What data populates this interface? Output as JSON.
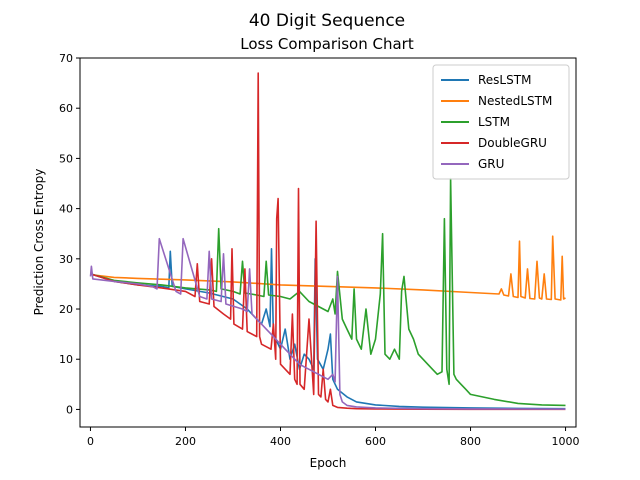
{
  "chart_data": {
    "type": "line",
    "title": "40 Digit Sequence",
    "subtitle": "Loss Comparison Chart",
    "xlabel": "Epoch",
    "ylabel": "Prediction Cross Entropy",
    "xlim": [
      -22,
      1022
    ],
    "ylim": [
      -3.5,
      70
    ],
    "xticks": [
      0,
      200,
      400,
      600,
      800,
      1000
    ],
    "yticks": [
      0,
      10,
      20,
      30,
      40,
      50,
      60,
      70
    ],
    "grid": false,
    "legend": "top-right",
    "series": [
      {
        "name": "ResLSTM",
        "color": "#1f77b4",
        "x": [
          0,
          50,
          100,
          150,
          165,
          168,
          172,
          200,
          250,
          300,
          330,
          350,
          360,
          370,
          378,
          381,
          385,
          400,
          410,
          420,
          430,
          440,
          450,
          460,
          470,
          473,
          478,
          490,
          500,
          505,
          510,
          520,
          540,
          560,
          600,
          650,
          700,
          800,
          900,
          1000
        ],
        "y": [
          27,
          25.5,
          24.8,
          24.5,
          24.2,
          31.5,
          24.5,
          24.0,
          23.2,
          22,
          20,
          18,
          17,
          20,
          16.5,
          32,
          15,
          12,
          16,
          10,
          13,
          8,
          11,
          10,
          8,
          30,
          10,
          8,
          12,
          15,
          6,
          4,
          2.5,
          1.5,
          0.9,
          0.6,
          0.45,
          0.3,
          0.2,
          0.15
        ]
      },
      {
        "name": "NestedLSTM",
        "color": "#ff7f0e",
        "x": [
          0,
          5,
          50,
          100,
          200,
          300,
          400,
          500,
          600,
          700,
          800,
          860,
          865,
          870,
          880,
          885,
          890,
          900,
          903,
          906,
          915,
          920,
          925,
          935,
          940,
          945,
          950,
          955,
          960,
          970,
          973,
          978,
          990,
          993,
          996,
          1000
        ],
        "y": [
          27,
          26.8,
          26.3,
          26.1,
          25.8,
          25.4,
          24.8,
          24.5,
          24.2,
          23.8,
          23.3,
          23,
          24,
          22.8,
          22.6,
          27,
          22.5,
          22.3,
          33.5,
          22.5,
          22.2,
          28,
          22.1,
          22,
          29.5,
          22.2,
          22,
          27,
          22,
          21.9,
          34.5,
          22,
          21.8,
          30.5,
          22,
          22.2
        ]
      },
      {
        "name": "LSTM",
        "color": "#2ca02c",
        "x": [
          0,
          50,
          100,
          150,
          200,
          250,
          265,
          270,
          275,
          300,
          315,
          320,
          325,
          350,
          365,
          370,
          375,
          400,
          420,
          440,
          460,
          480,
          500,
          510,
          515,
          520,
          530,
          540,
          550,
          555,
          560,
          570,
          580,
          590,
          600,
          610,
          615,
          620,
          630,
          640,
          650,
          655,
          660,
          670,
          680,
          690,
          700,
          720,
          730,
          740,
          745,
          750,
          755,
          758,
          765,
          770,
          780,
          790,
          800,
          850,
          900,
          950,
          1000
        ],
        "y": [
          27,
          25.7,
          25.2,
          24.8,
          24.2,
          23.8,
          23.5,
          36,
          24,
          23.5,
          23,
          29.5,
          23.2,
          22.8,
          22.5,
          29.5,
          22.8,
          22.5,
          22,
          23.5,
          21.5,
          20.5,
          19.5,
          22,
          19,
          27.5,
          18,
          16,
          14,
          24,
          14,
          12,
          20,
          11,
          14,
          23,
          35,
          11,
          10,
          12,
          10,
          23.5,
          26.5,
          16,
          14,
          11,
          10,
          8,
          7,
          7.5,
          38,
          8,
          5,
          46,
          7,
          6,
          5,
          4,
          3,
          2,
          1.2,
          0.9,
          0.8
        ]
      },
      {
        "name": "DoubleGRU",
        "color": "#d62728",
        "x": [
          0,
          50,
          100,
          150,
          200,
          220,
          225,
          230,
          250,
          255,
          260,
          280,
          295,
          298,
          302,
          320,
          325,
          330,
          350,
          353,
          356,
          360,
          380,
          385,
          390,
          392,
          395,
          400,
          420,
          425,
          430,
          435,
          438,
          441,
          450,
          460,
          470,
          475,
          480,
          485,
          490,
          495,
          500,
          505,
          510,
          520,
          540,
          560,
          600,
          700,
          800,
          900,
          1000
        ],
        "y": [
          27,
          25.5,
          24.8,
          24.2,
          23.5,
          22.5,
          29,
          21.5,
          21,
          30,
          20.5,
          19,
          18,
          32,
          17,
          16,
          28,
          15.5,
          14.5,
          67,
          14.5,
          13,
          12,
          17,
          10,
          38,
          42,
          9,
          7,
          19,
          6,
          5,
          44,
          5,
          4,
          18,
          3,
          37.5,
          3,
          2.5,
          8,
          2,
          1.5,
          4,
          0.8,
          0.4,
          0.25,
          0.15,
          0.1,
          0.05,
          0.03,
          0.02,
          0.02
        ]
      },
      {
        "name": "GRU",
        "color": "#9467bd",
        "x": [
          0,
          2,
          5,
          50,
          100,
          130,
          140,
          145,
          180,
          190,
          195,
          230,
          245,
          250,
          255,
          275,
          280,
          285,
          320,
          330,
          335,
          340,
          350,
          360,
          370,
          380,
          390,
          400,
          410,
          420,
          430,
          440,
          450,
          460,
          470,
          480,
          490,
          500,
          510,
          515,
          520,
          525,
          530,
          540,
          560,
          600,
          700,
          800,
          900,
          1000
        ],
        "y": [
          26.5,
          28.5,
          26,
          25.5,
          25,
          24.5,
          24,
          34,
          23.5,
          23,
          34,
          22.5,
          22,
          31.5,
          22,
          21.5,
          31,
          21,
          20,
          19.5,
          28,
          19,
          18,
          17,
          16,
          15,
          14,
          13,
          12,
          11,
          10,
          9,
          8.5,
          8,
          7.5,
          7,
          6.5,
          6,
          7,
          5.5,
          26.5,
          3,
          1.5,
          0.8,
          0.5,
          0.3,
          0.15,
          0.1,
          0.08,
          0.07
        ]
      }
    ]
  }
}
